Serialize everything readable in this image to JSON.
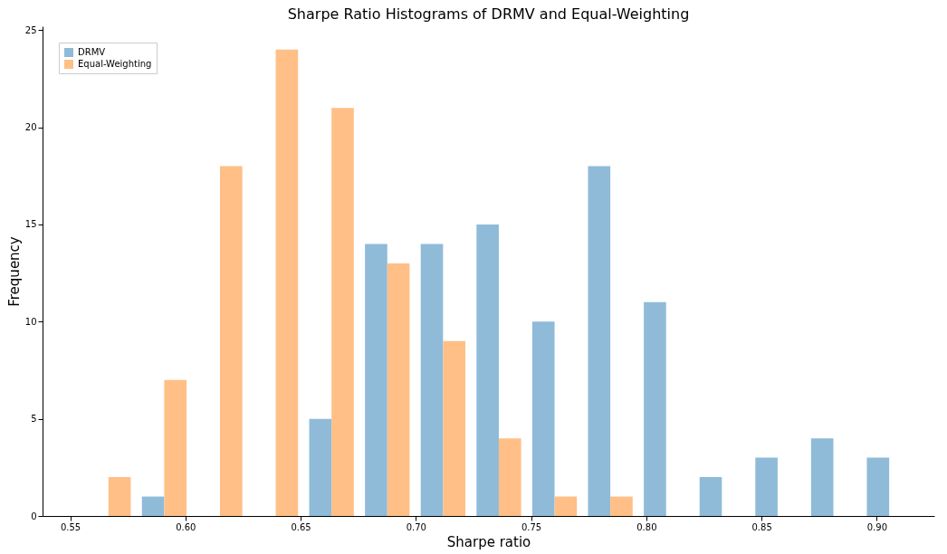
{
  "chart_data": {
    "type": "histogram",
    "title": "Sharpe Ratio Histograms of DRMV and Equal-Weighting",
    "xlabel": "Sharpe ratio",
    "ylabel": "Frequency",
    "bins": [
      0.5545,
      0.5787,
      0.6029,
      0.6271,
      0.6513,
      0.6755,
      0.6997,
      0.7239,
      0.7481,
      0.7723,
      0.7965,
      0.8207,
      0.8449,
      0.8691,
      0.8933,
      0.9175
    ],
    "series": [
      {
        "name": "DRMV",
        "color": "#8fbbd9",
        "values": [
          0,
          1,
          0,
          0,
          5,
          14,
          14,
          15,
          10,
          18,
          11,
          2,
          3,
          4,
          3
        ]
      },
      {
        "name": "Equal-Weighting",
        "color": "#ffbf86",
        "values": [
          2,
          7,
          18,
          24,
          21,
          13,
          9,
          4,
          1,
          1,
          0,
          0,
          0,
          0,
          0
        ]
      }
    ],
    "xlim": [
      0.538,
      0.925
    ],
    "xticks": [
      {
        "value": 0.55,
        "label": "0.55"
      },
      {
        "value": 0.6,
        "label": "0.60"
      },
      {
        "value": 0.65,
        "label": "0.65"
      },
      {
        "value": 0.7,
        "label": "0.70"
      },
      {
        "value": 0.75,
        "label": "0.75"
      },
      {
        "value": 0.8,
        "label": "0.80"
      },
      {
        "value": 0.85,
        "label": "0.85"
      },
      {
        "value": 0.9,
        "label": "0.90"
      }
    ],
    "ylim": [
      0,
      25.2
    ],
    "yticks": [
      0,
      5,
      10,
      15,
      20,
      25
    ],
    "grid": false,
    "legend": "top left"
  }
}
